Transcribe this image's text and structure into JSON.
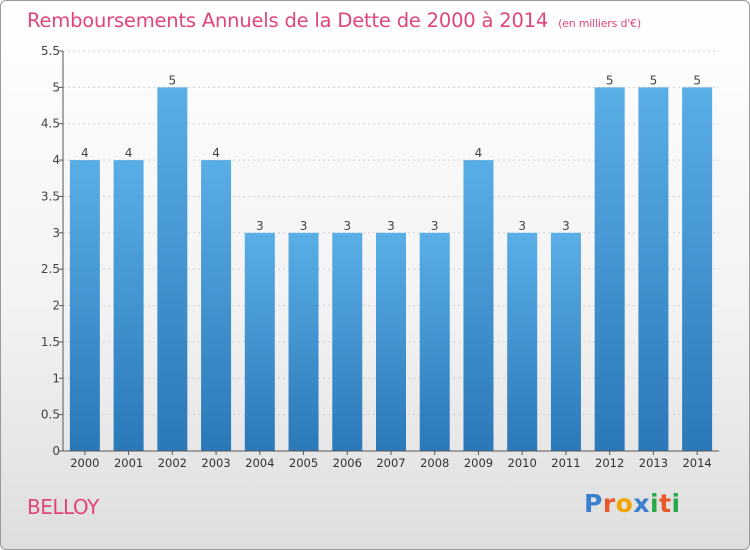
{
  "header": {
    "title": "Remboursements Annuels de la Dette de 2000 à 2014",
    "unit": "(en milliers d'€)"
  },
  "footer": {
    "city": "BELLOY",
    "logo_letters": [
      "P",
      "r",
      "o",
      "x",
      "i",
      "t",
      "i"
    ],
    "logo_colors": [
      "#3a7fd0",
      "#e85a2a",
      "#f2a300",
      "#3a7fd0",
      "#2aa84a",
      "#e85a2a",
      "#2aa84a"
    ]
  },
  "colors": {
    "bar_top": "#5aaee6",
    "bar_bottom": "#2b78b8",
    "title": "#e0457b"
  },
  "chart_data": {
    "type": "bar",
    "categories": [
      "2000",
      "2001",
      "2002",
      "2003",
      "2004",
      "2005",
      "2006",
      "2007",
      "2008",
      "2009",
      "2010",
      "2011",
      "2012",
      "2013",
      "2014"
    ],
    "values": [
      4,
      4,
      5,
      4,
      3,
      3,
      3,
      3,
      3,
      4,
      3,
      3,
      5,
      5,
      5
    ],
    "data_labels": [
      "4",
      "4",
      "5",
      "4",
      "3",
      "3",
      "3",
      "3",
      "3",
      "4",
      "3",
      "3",
      "5",
      "5",
      "5"
    ],
    "title": "Remboursements Annuels de la Dette de 2000 à 2014",
    "xlabel": "",
    "ylabel": "",
    "ylim": [
      0,
      5.5
    ],
    "y_ticks": [
      0,
      0.5,
      1,
      1.5,
      2,
      2.5,
      3,
      3.5,
      4,
      4.5,
      5,
      5.5
    ],
    "y_tick_labels": [
      "0",
      "0.5",
      "1",
      "1.5",
      "2",
      "2.5",
      "3",
      "3.5",
      "4",
      "4.5",
      "5",
      "5.5"
    ],
    "grid": true
  }
}
